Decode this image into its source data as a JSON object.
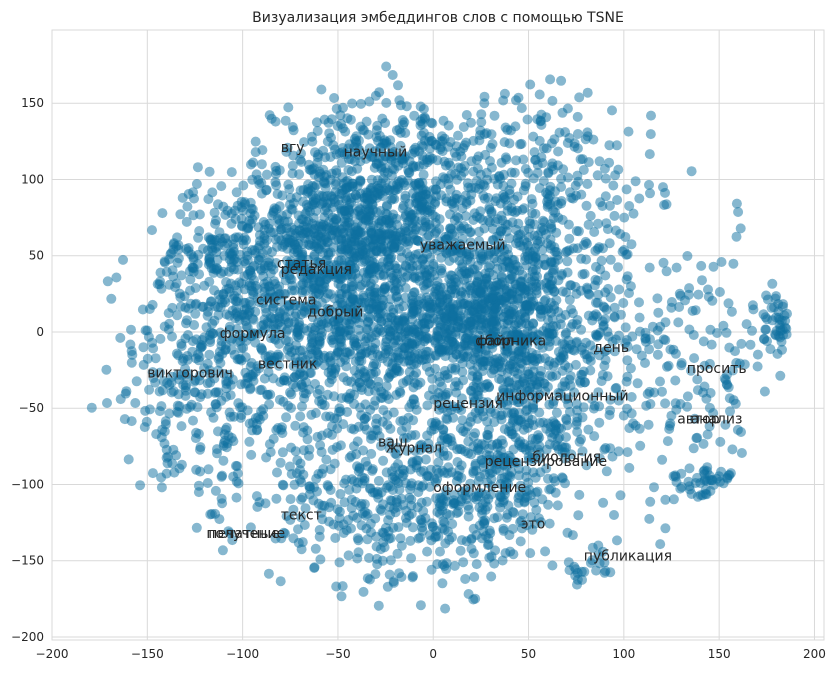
{
  "chart_data": {
    "type": "scatter",
    "title": "Визуализация эмбеддингов слов с помощью TSNE",
    "xlabel": "",
    "ylabel": "",
    "xlim": [
      -200,
      205
    ],
    "ylim": [
      -202,
      198
    ],
    "xticks": [
      -200,
      -150,
      -100,
      -50,
      0,
      50,
      100,
      150,
      200
    ],
    "yticks": [
      -200,
      -150,
      -100,
      -50,
      0,
      50,
      100,
      150
    ],
    "xtick_labels": [
      "−200",
      "−150",
      "−100",
      "−50",
      "0",
      "50",
      "100",
      "150",
      "200"
    ],
    "ytick_labels": [
      "−200",
      "−150",
      "−100",
      "−50",
      "0",
      "50",
      "100",
      "150"
    ],
    "grid": true,
    "point_color": "#0e6f9f",
    "point_alpha": 0.5,
    "clusters": [
      {
        "cx": -43,
        "cy": 0,
        "sx": 38,
        "sy": 40,
        "n": 900
      },
      {
        "cx": -60,
        "cy": 60,
        "sx": 28,
        "sy": 28,
        "n": 500
      },
      {
        "cx": -20,
        "cy": 80,
        "sx": 25,
        "sy": 25,
        "n": 400
      },
      {
        "cx": 20,
        "cy": 5,
        "sx": 25,
        "sy": 20,
        "n": 500
      },
      {
        "cx": 45,
        "cy": 40,
        "sx": 25,
        "sy": 30,
        "n": 350
      },
      {
        "cx": 45,
        "cy": -60,
        "sx": 20,
        "sy": 30,
        "n": 300
      },
      {
        "cx": 10,
        "cy": -110,
        "sx": 30,
        "sy": 25,
        "n": 250
      },
      {
        "cx": -30,
        "cy": -110,
        "sx": 35,
        "sy": 30,
        "n": 300
      },
      {
        "cx": -20,
        "cy": 120,
        "sx": 30,
        "sy": 20,
        "n": 200
      },
      {
        "cx": 60,
        "cy": 100,
        "sx": 30,
        "sy": 30,
        "n": 200
      },
      {
        "cx": 80,
        "cy": -20,
        "sx": 25,
        "sy": 35,
        "n": 200
      },
      {
        "cx": -120,
        "cy": -30,
        "sx": 25,
        "sy": 45,
        "n": 300
      },
      {
        "cx": -110,
        "cy": 40,
        "sx": 20,
        "sy": 25,
        "n": 150
      },
      {
        "cx": 140,
        "cy": -20,
        "sx": 25,
        "sy": 50,
        "n": 150
      },
      {
        "cx": 180,
        "cy": 5,
        "sx": 5,
        "sy": 12,
        "n": 50
      },
      {
        "cx": 145,
        "cy": -100,
        "sx": 10,
        "sy": 8,
        "n": 60
      },
      {
        "cx": 85,
        "cy": -155,
        "sx": 8,
        "sy": 10,
        "n": 40
      }
    ],
    "annotations": [
      {
        "text": "вгу",
        "x": -80,
        "y": 118
      },
      {
        "text": "научный",
        "x": -47,
        "y": 115
      },
      {
        "text": "уважаемый",
        "x": -7,
        "y": 54
      },
      {
        "text": "статья",
        "x": -82,
        "y": 42
      },
      {
        "text": "редакция",
        "x": -80,
        "y": 38
      },
      {
        "text": "система",
        "x": -93,
        "y": 18
      },
      {
        "text": "добрый",
        "x": -66,
        "y": 10
      },
      {
        "text": "формула",
        "x": -112,
        "y": -4
      },
      {
        "text": "вестник",
        "x": -92,
        "y": -24
      },
      {
        "text": "викторович",
        "x": -150,
        "y": -30
      },
      {
        "text": "файл",
        "x": 22,
        "y": -9
      },
      {
        "text": "сборника",
        "x": 23,
        "y": -9
      },
      {
        "text": "день",
        "x": 84,
        "y": -13
      },
      {
        "text": "просить",
        "x": 133,
        "y": -27
      },
      {
        "text": "информационный",
        "x": 33,
        "y": -45
      },
      {
        "text": "рецензия",
        "x": 0,
        "y": -50
      },
      {
        "text": "автор",
        "x": 128,
        "y": -60
      },
      {
        "text": "анализ",
        "x": 135,
        "y": -60
      },
      {
        "text": "ваш",
        "x": -29,
        "y": -75
      },
      {
        "text": "журнал",
        "x": -25,
        "y": -79
      },
      {
        "text": "биология",
        "x": 52,
        "y": -85
      },
      {
        "text": "рецензирование",
        "x": 27,
        "y": -88
      },
      {
        "text": "оформление",
        "x": 0,
        "y": -105
      },
      {
        "text": "текст",
        "x": -80,
        "y": -123
      },
      {
        "text": "это",
        "x": 46,
        "y": -129
      },
      {
        "text": "получение",
        "x": -119,
        "y": -135
      },
      {
        "text": "печатные",
        "x": -118,
        "y": -135
      },
      {
        "text": "публикация",
        "x": 79,
        "y": -150
      }
    ]
  }
}
